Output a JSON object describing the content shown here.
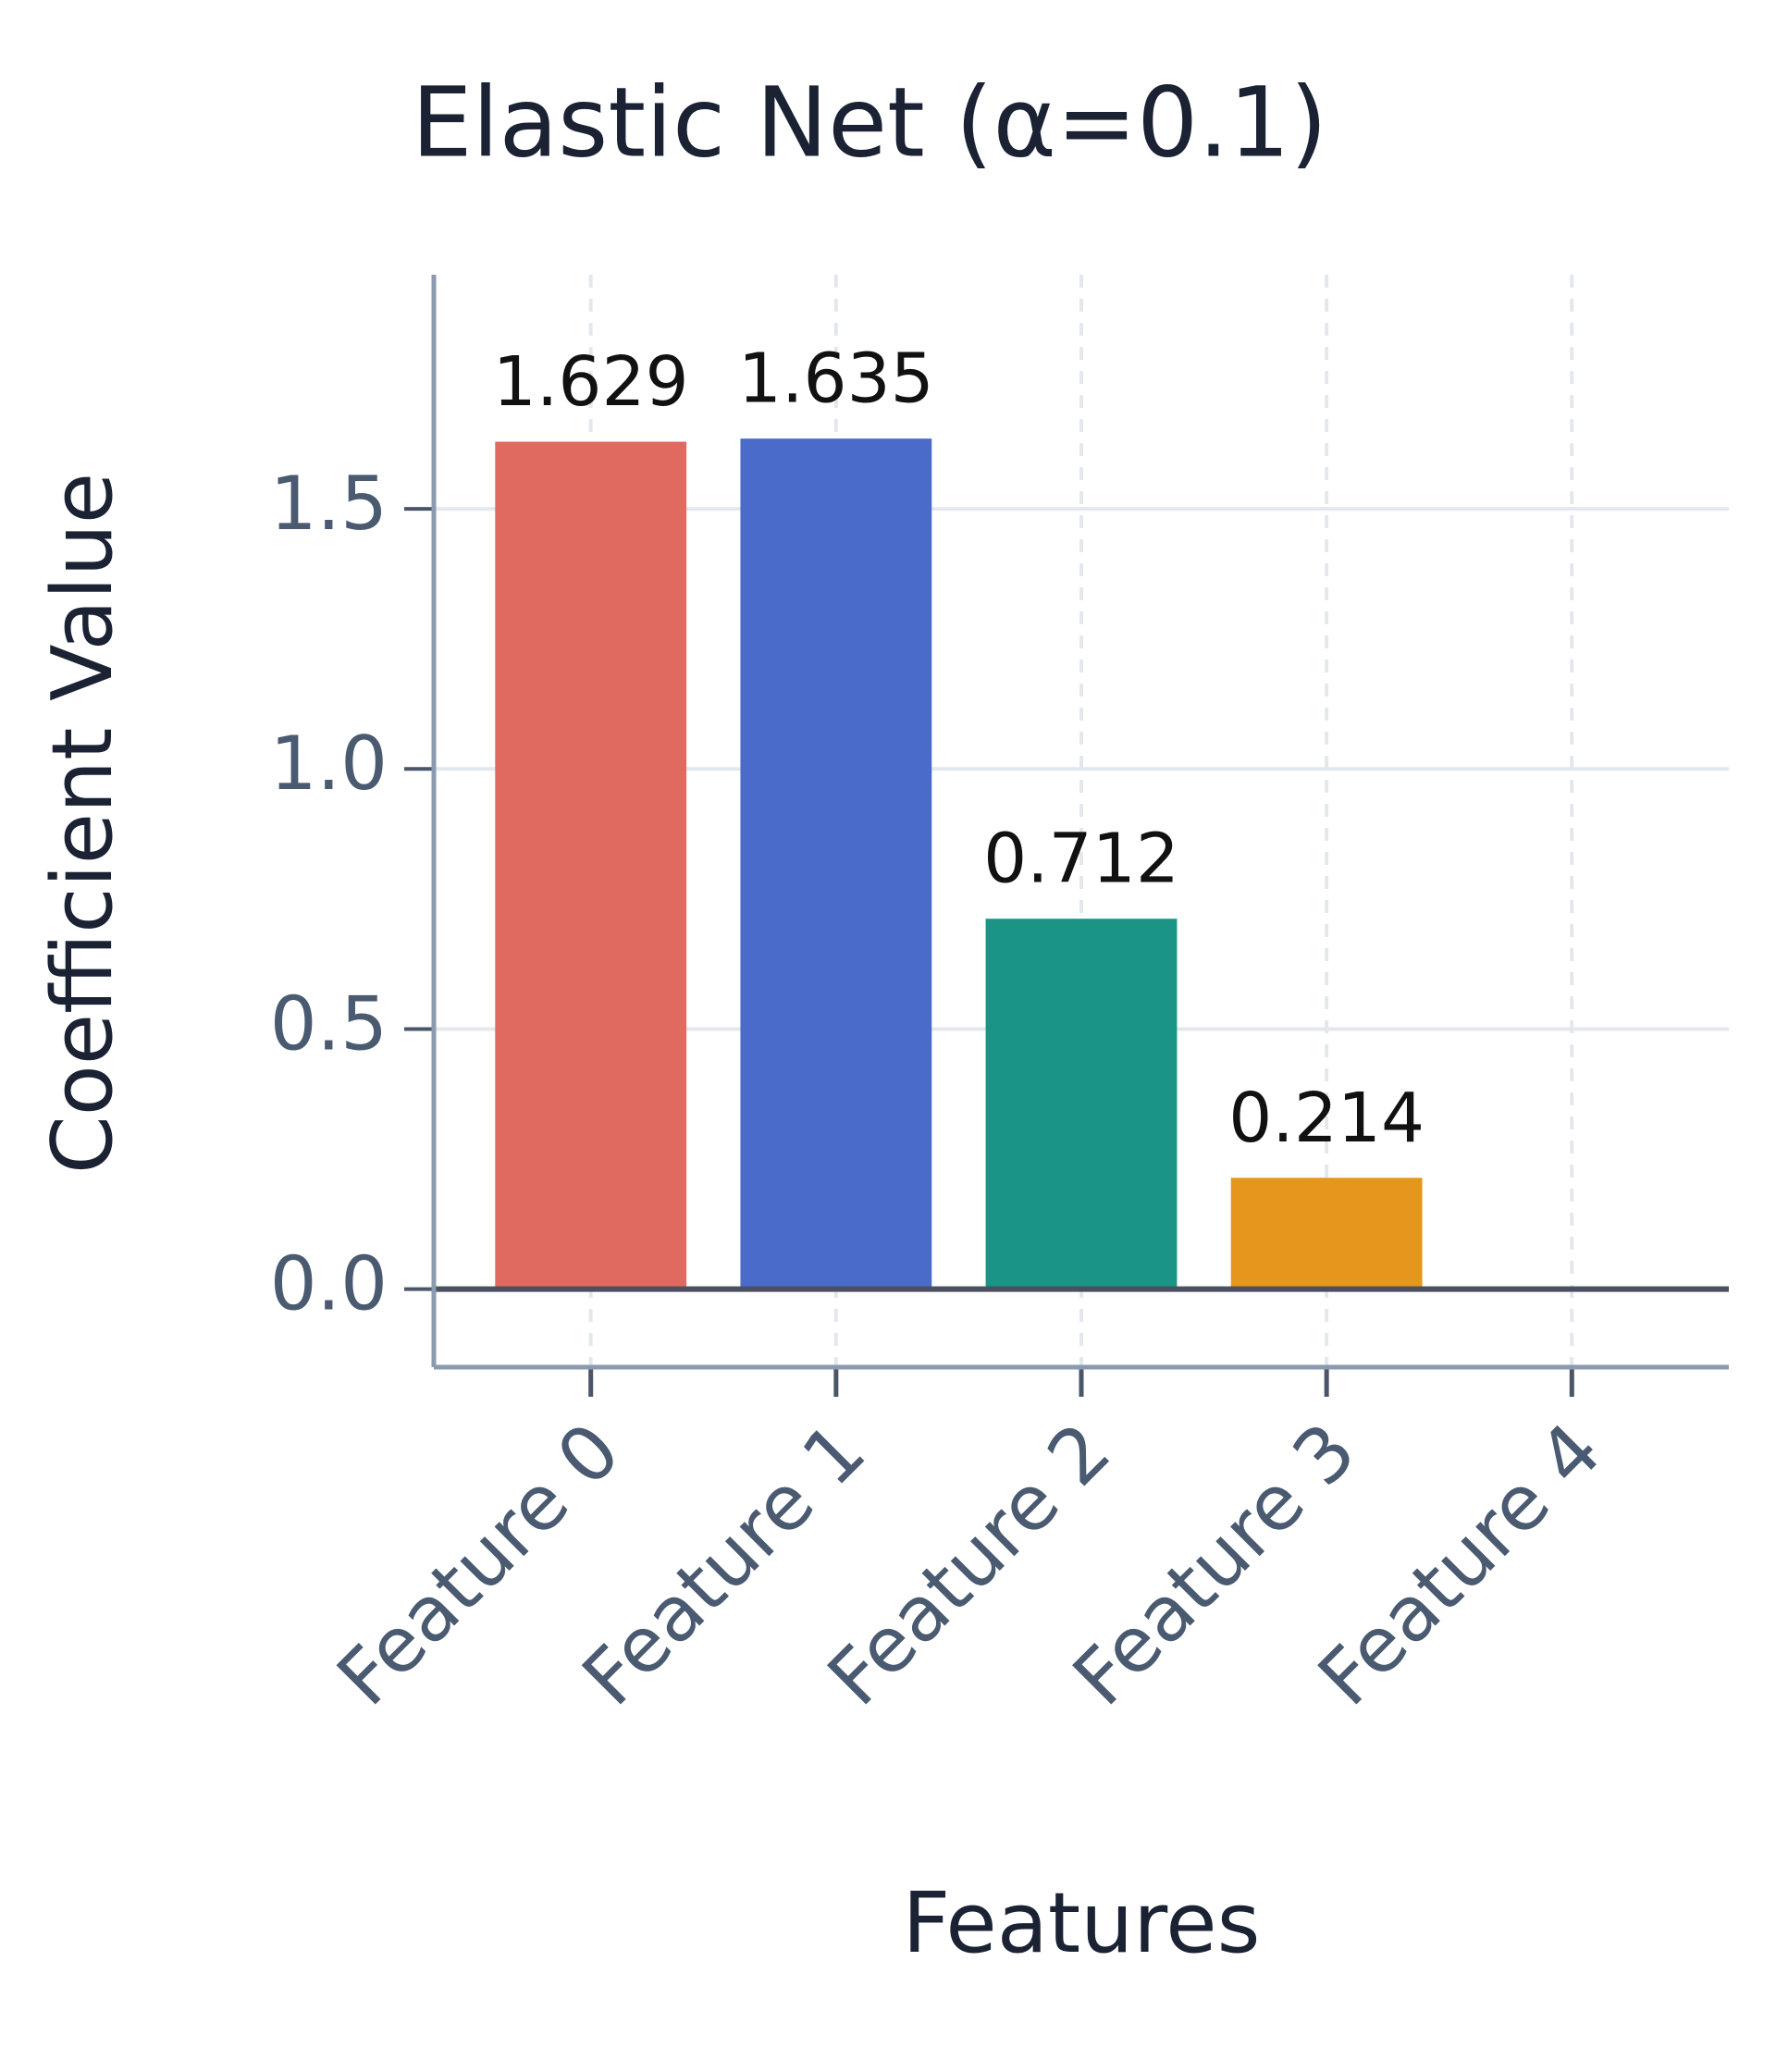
{
  "chart_data": {
    "type": "bar",
    "title": "Elastic Net (α=0.1)",
    "x_label": "Features",
    "y_label": "Coefficient Value",
    "categories": [
      "Feature 0",
      "Feature 1",
      "Feature 2",
      "Feature 3",
      "Feature 4"
    ],
    "values": [
      1.629,
      1.635,
      0.712,
      0.214,
      0
    ],
    "colors": [
      "#e06a5f",
      "#4a6bc9",
      "#1a9485",
      "#e5961c",
      "#7b5ea7"
    ],
    "ylim": [
      -0.15,
      1.95
    ],
    "yticks": [
      {
        "value": 0,
        "label": "0.0"
      },
      0.5,
      {
        "value": 1,
        "label": "1.0"
      },
      1.5
    ],
    "grid": true
  }
}
